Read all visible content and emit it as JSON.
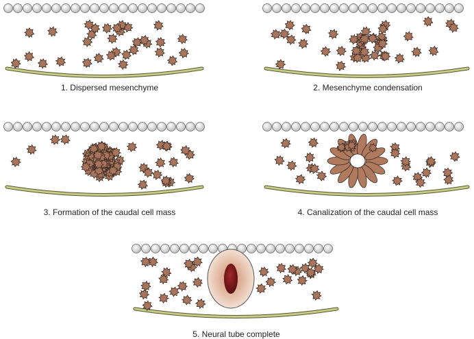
{
  "panels": [
    {
      "caption": "1. Dispersed mesenchyme"
    },
    {
      "caption": "2. Mesenchyme condensation"
    },
    {
      "caption": "3. Formation of the caudal cell mass"
    },
    {
      "caption": "4. Canalization of the caudal cell mass"
    },
    {
      "caption": "5. Neural tube complete"
    }
  ]
}
